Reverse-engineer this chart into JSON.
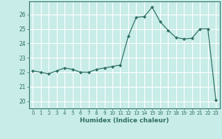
{
  "x": [
    0,
    1,
    2,
    3,
    4,
    5,
    6,
    7,
    8,
    9,
    10,
    11,
    12,
    13,
    14,
    15,
    16,
    17,
    18,
    19,
    20,
    21,
    22,
    23
  ],
  "y": [
    22.1,
    22.0,
    21.9,
    22.1,
    22.3,
    22.2,
    22.0,
    22.0,
    22.2,
    22.3,
    22.4,
    22.5,
    24.5,
    25.8,
    25.85,
    26.5,
    25.5,
    24.9,
    24.4,
    24.3,
    24.35,
    25.0,
    25.0,
    20.1
  ],
  "xlabel": "Humidex (Indice chaleur)",
  "bg_color": "#c8ece8",
  "line_color": "#2d6e62",
  "grid_color": "#ffffff",
  "yticks": [
    20,
    21,
    22,
    23,
    24,
    25,
    26
  ],
  "xticks": [
    0,
    1,
    2,
    3,
    4,
    5,
    6,
    7,
    8,
    9,
    10,
    11,
    12,
    13,
    14,
    15,
    16,
    17,
    18,
    19,
    20,
    21,
    22,
    23
  ],
  "ylim": [
    19.5,
    26.9
  ],
  "xlim": [
    -0.5,
    23.5
  ]
}
